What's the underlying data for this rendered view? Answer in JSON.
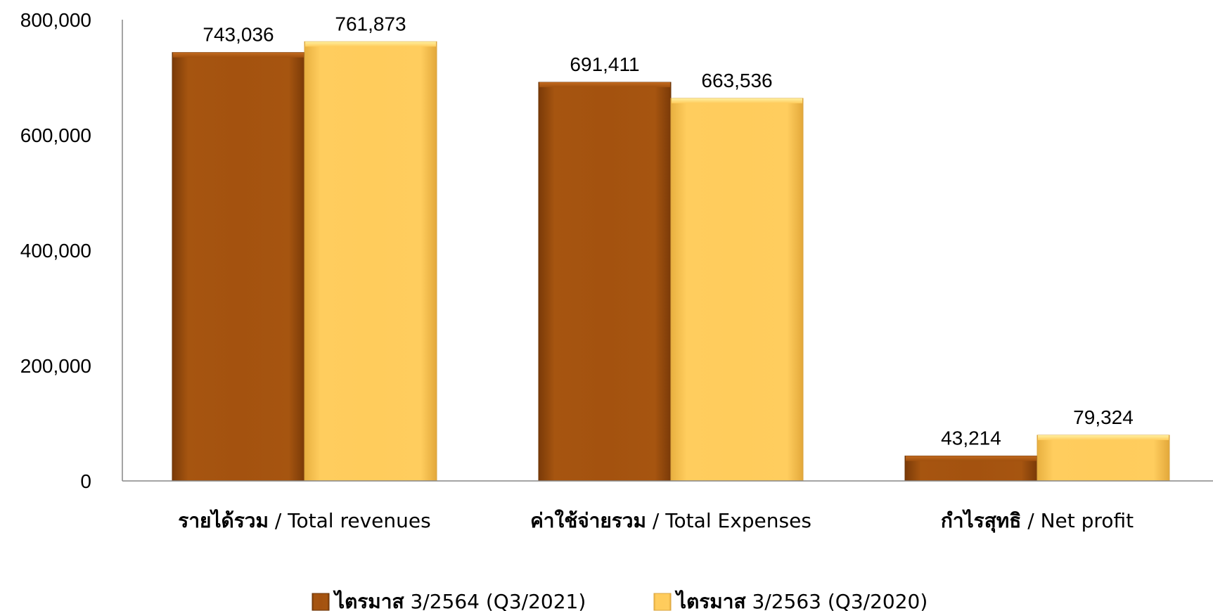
{
  "chart_data": {
    "type": "bar",
    "categories": [
      {
        "thai": "รายได้รวม",
        "english": " / Total revenues"
      },
      {
        "thai": "ค่าใช้จ่ายรวม",
        "english": " / Total Expenses"
      },
      {
        "thai": "กำไรสุทธิ",
        "english": " / Net profit"
      }
    ],
    "series": [
      {
        "legend_thai": "ไตรมาส",
        "legend_rest": " 3/2564 (Q3/2021)",
        "color": "#A0500E",
        "values": [
          743036,
          691411,
          43214
        ],
        "labels": [
          "743,036",
          "691,411",
          "43,214"
        ]
      },
      {
        "legend_thai": "ไตรมาส",
        "legend_rest": " 3/2563 (Q3/2020)",
        "color": "#FFCC5C",
        "values": [
          761873,
          663536,
          79324
        ],
        "labels": [
          "761,873",
          "663,536",
          "79,324"
        ]
      }
    ],
    "ylim": [
      0,
      800000
    ],
    "y_ticks": [
      0,
      200000,
      400000,
      600000,
      800000
    ],
    "y_tick_labels": [
      "0",
      "200,000",
      "400,000",
      "600,000",
      "800,000"
    ],
    "legend_position": "bottom",
    "grid": false
  }
}
